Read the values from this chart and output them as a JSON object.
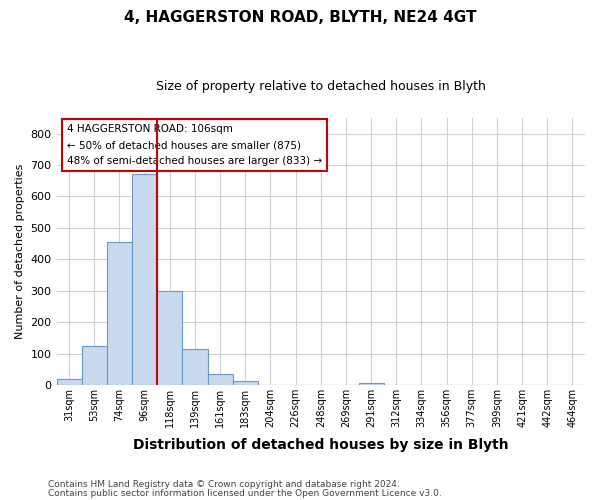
{
  "title1": "4, HAGGERSTON ROAD, BLYTH, NE24 4GT",
  "title2": "Size of property relative to detached houses in Blyth",
  "xlabel": "Distribution of detached houses by size in Blyth",
  "ylabel": "Number of detached properties",
  "footnote1": "Contains HM Land Registry data © Crown copyright and database right 2024.",
  "footnote2": "Contains public sector information licensed under the Open Government Licence v3.0.",
  "annotation_line1": "4 HAGGERSTON ROAD: 106sqm",
  "annotation_line2": "← 50% of detached houses are smaller (875)",
  "annotation_line3": "48% of semi-detached houses are larger (833) →",
  "bar_labels": [
    "31sqm",
    "53sqm",
    "74sqm",
    "96sqm",
    "118sqm",
    "139sqm",
    "161sqm",
    "183sqm",
    "204sqm",
    "226sqm",
    "248sqm",
    "269sqm",
    "291sqm",
    "312sqm",
    "334sqm",
    "356sqm",
    "377sqm",
    "399sqm",
    "421sqm",
    "442sqm",
    "464sqm"
  ],
  "bar_values": [
    20,
    125,
    455,
    670,
    300,
    115,
    35,
    12,
    0,
    0,
    0,
    0,
    8,
    0,
    0,
    0,
    0,
    0,
    0,
    0,
    0
  ],
  "bar_color": "#c8d8ed",
  "bar_edgecolor": "#6699cc",
  "vline_x": 4.0,
  "vline_color": "#cc0000",
  "ylim": [
    0,
    850
  ],
  "yticks": [
    0,
    100,
    200,
    300,
    400,
    500,
    600,
    700,
    800
  ],
  "grid_color": "#d0d0d0",
  "annotation_box_edgecolor": "#cc0000",
  "annotation_box_facecolor": "#ffffff",
  "title1_fontsize": 11,
  "title2_fontsize": 9,
  "ylabel_fontsize": 8,
  "xlabel_fontsize": 10,
  "footnote_fontsize": 6.5,
  "footnote_color": "#444444"
}
